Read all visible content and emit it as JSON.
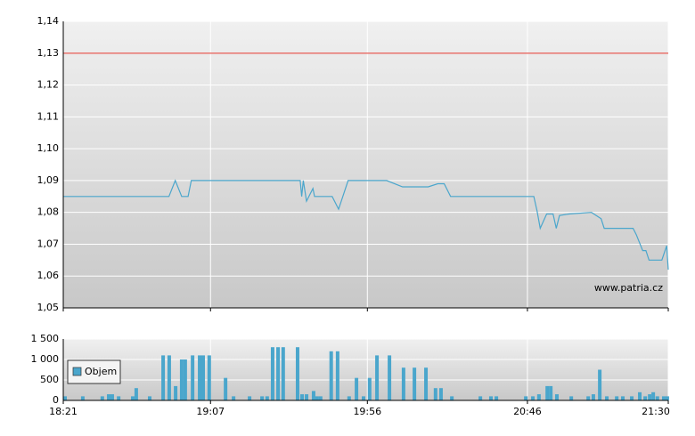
{
  "chart_data": [
    {
      "type": "line",
      "x": [
        1101,
        1114,
        1115,
        1134,
        1136,
        1138,
        1140,
        1141,
        1175,
        1175.5,
        1176,
        1177,
        1179,
        1179.5,
        1185,
        1187,
        1190,
        1202,
        1207,
        1215,
        1218,
        1220,
        1222,
        1248,
        1249,
        1250,
        1252,
        1254,
        1255,
        1256,
        1259,
        1266,
        1269,
        1270,
        1279,
        1280,
        1282,
        1283,
        1284,
        1288,
        1289.5,
        1290
      ],
      "series": [
        {
          "color": "#4aa6cc",
          "values": [
            1.085,
            1.085,
            1.085,
            1.085,
            1.09,
            1.085,
            1.085,
            1.09,
            1.09,
            1.085,
            1.09,
            1.0835,
            1.0875,
            1.085,
            1.085,
            1.081,
            1.09,
            1.09,
            1.088,
            1.088,
            1.089,
            1.089,
            1.085,
            1.085,
            1.0805,
            1.075,
            1.0795,
            1.0795,
            1.075,
            1.079,
            1.0795,
            1.08,
            1.078,
            1.075,
            1.075,
            1.073,
            1.068,
            1.068,
            1.065,
            1.065,
            1.0695,
            1.062
          ]
        }
      ],
      "reference": {
        "value": 1.13,
        "color": "#e8736c"
      },
      "xlim": [
        1101,
        1290
      ],
      "ylim": [
        1.05,
        1.14
      ],
      "yticks": [
        {
          "value": 1.05,
          "label": "1,05"
        },
        {
          "value": 1.06,
          "label": "1,06"
        },
        {
          "value": 1.07,
          "label": "1,07"
        },
        {
          "value": 1.08,
          "label": "1,08"
        },
        {
          "value": 1.09,
          "label": "1,09"
        },
        {
          "value": 1.1,
          "label": "1,10"
        },
        {
          "value": 1.11,
          "label": "1,11"
        },
        {
          "value": 1.12,
          "label": "1,12"
        },
        {
          "value": 1.13,
          "label": "1,13"
        },
        {
          "value": 1.14,
          "label": "1,14"
        }
      ],
      "watermark": "www.patria.cz",
      "grid": true
    },
    {
      "type": "bar",
      "x": [
        1101.3,
        1107.1,
        1113.2,
        1115.2,
        1116.3,
        1118.3,
        1122.7,
        1123.8,
        1128,
        1132.2,
        1134.1,
        1136.1,
        1138,
        1139.1,
        1141.4,
        1143.6,
        1144.7,
        1146.6,
        1151.7,
        1154.2,
        1159.2,
        1163.1,
        1164.7,
        1166.4,
        1168.1,
        1169.7,
        1174.2,
        1175.6,
        1177,
        1179.2,
        1180.3,
        1181.4,
        1184.7,
        1186.7,
        1190.3,
        1192.6,
        1194.8,
        1196.7,
        1199,
        1202.9,
        1207.3,
        1210.7,
        1214.3,
        1217.3,
        1219,
        1222.4,
        1231.3,
        1234.6,
        1236.3,
        1245.5,
        1247.7,
        1249.6,
        1252.2,
        1253.3,
        1255.2,
        1259.7,
        1265,
        1266.6,
        1268.6,
        1270.8,
        1273.9,
        1275.8,
        1278.6,
        1281.1,
        1282.8,
        1284.2,
        1285.3,
        1286.6,
        1288.6,
        1289.7
      ],
      "series": [
        {
          "name": "Objem",
          "color": "#4aa6cc",
          "values": [
            100,
            100,
            100,
            150,
            150,
            100,
            100,
            300,
            100,
            1100,
            1100,
            350,
            1000,
            1000,
            1100,
            1100,
            1100,
            1100,
            550,
            100,
            100,
            100,
            100,
            1300,
            1300,
            1300,
            1300,
            150,
            150,
            230,
            100,
            100,
            1200,
            1200,
            100,
            550,
            100,
            550,
            1100,
            1100,
            800,
            800,
            800,
            300,
            300,
            100,
            100,
            100,
            100,
            100,
            100,
            150,
            350,
            350,
            150,
            100,
            100,
            150,
            750,
            100,
            100,
            100,
            100,
            200,
            100,
            150,
            200,
            100,
            100,
            100
          ]
        }
      ],
      "xlim": [
        1101,
        1290
      ],
      "xticks": [
        {
          "value": 1101,
          "label": "18:21"
        },
        {
          "value": 1147,
          "label": "19:07"
        },
        {
          "value": 1196,
          "label": "19:56"
        },
        {
          "value": 1246,
          "label": "20:46"
        },
        {
          "value": 1290,
          "label": "21:30"
        }
      ],
      "ylim": [
        0,
        1500
      ],
      "yticks": [
        0,
        {
          "value": 500,
          "label": "500"
        },
        {
          "value": 1000,
          "label": "1 000"
        },
        {
          "value": 1500,
          "label": "1 500"
        }
      ],
      "grid": true
    }
  ]
}
